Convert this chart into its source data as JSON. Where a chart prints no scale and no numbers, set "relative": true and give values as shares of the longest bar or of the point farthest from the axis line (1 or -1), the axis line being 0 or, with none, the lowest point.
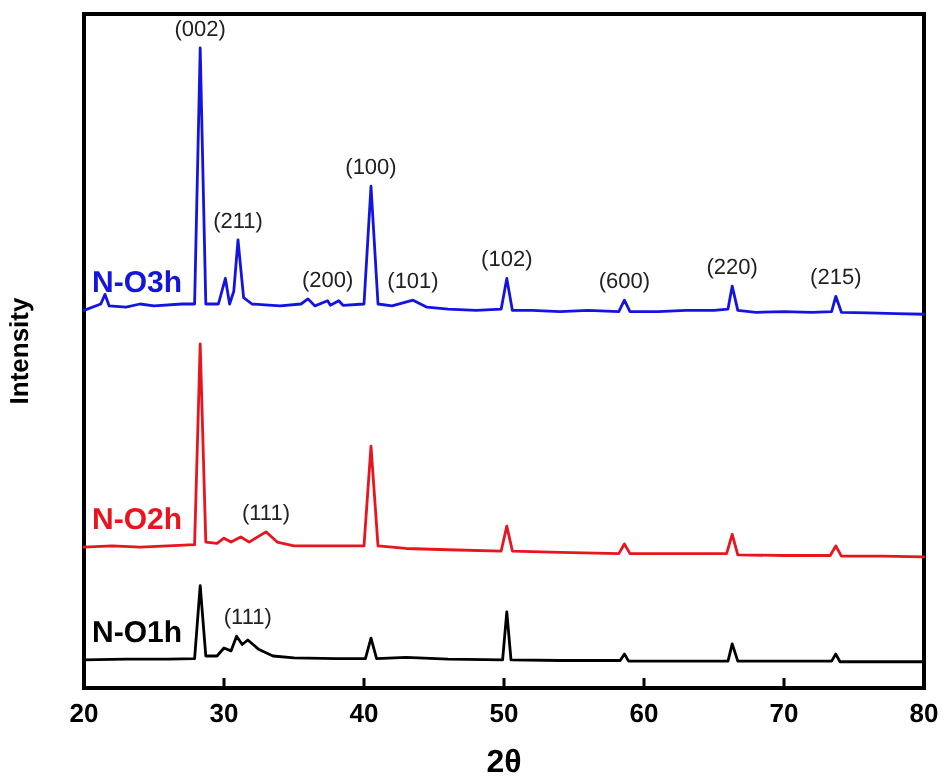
{
  "chart_data": {
    "type": "line",
    "relative": true,
    "xlabel": "2θ",
    "ylabel": "Intensity",
    "xlim": [
      20,
      80
    ],
    "xticks": [
      20,
      30,
      40,
      50,
      60,
      70,
      80
    ],
    "tick_labels": "x",
    "grid": false,
    "marker": "none",
    "line_style": "solid",
    "series": [
      {
        "name": "N-O3h",
        "color": "#1414e0",
        "x": [
          20,
          21.2,
          21.5,
          21.8,
          23,
          24,
          25,
          27,
          27.9,
          28.3,
          28.7,
          29.6,
          30.1,
          30.4,
          30.7,
          31.0,
          31.4,
          32,
          34,
          35.5,
          36,
          36.5,
          37.4,
          37.6,
          38.2,
          38.5,
          40,
          40.5,
          41,
          42,
          43.5,
          44.5,
          46,
          48,
          49.8,
          50.2,
          50.6,
          52,
          54,
          56,
          58.2,
          58.6,
          59,
          61,
          63,
          65,
          66,
          66.3,
          66.7,
          68,
          70,
          72,
          73.4,
          73.7,
          74.1,
          76,
          78,
          80
        ],
        "values": [
          0.59,
          0.6,
          0.615,
          0.597,
          0.595,
          0.6,
          0.597,
          0.6,
          0.6,
          1.0,
          0.6,
          0.6,
          0.64,
          0.6,
          0.62,
          0.7,
          0.61,
          0.6,
          0.597,
          0.6,
          0.608,
          0.597,
          0.605,
          0.598,
          0.605,
          0.598,
          0.6,
          0.784,
          0.6,
          0.597,
          0.606,
          0.595,
          0.592,
          0.59,
          0.592,
          0.64,
          0.59,
          0.59,
          0.588,
          0.59,
          0.588,
          0.606,
          0.588,
          0.588,
          0.59,
          0.59,
          0.592,
          0.628,
          0.59,
          0.587,
          0.588,
          0.587,
          0.588,
          0.612,
          0.587,
          0.586,
          0.585,
          0.584
        ]
      },
      {
        "name": "N-O2h",
        "color": "#e8141e",
        "x": [
          20,
          22,
          24,
          26,
          27.9,
          28.3,
          28.7,
          29.5,
          30,
          30.5,
          31.2,
          31.8,
          33,
          33.8,
          35,
          37,
          40,
          40.5,
          41,
          43,
          46,
          49.8,
          50.2,
          50.6,
          54,
          58.2,
          58.6,
          59,
          62,
          65.9,
          66.3,
          66.7,
          70,
          73.3,
          73.7,
          74.1,
          77,
          80
        ],
        "values": [
          0.22,
          0.222,
          0.22,
          0.222,
          0.224,
          0.5375,
          0.228,
          0.226,
          0.234,
          0.228,
          0.236,
          0.228,
          0.244,
          0.228,
          0.222,
          0.222,
          0.222,
          0.378,
          0.222,
          0.218,
          0.216,
          0.214,
          0.253,
          0.214,
          0.212,
          0.21,
          0.225,
          0.21,
          0.21,
          0.21,
          0.24,
          0.208,
          0.207,
          0.207,
          0.222,
          0.206,
          0.206,
          0.205
        ]
      },
      {
        "name": "N-O1h",
        "color": "#000000",
        "x": [
          20,
          23,
          26,
          27.9,
          28.3,
          28.7,
          29.5,
          30,
          30.5,
          30.9,
          31.3,
          31.7,
          32.5,
          33.5,
          35,
          38,
          40.1,
          40.5,
          40.9,
          43,
          46,
          49.9,
          50.2,
          50.5,
          54,
          58.3,
          58.6,
          58.9,
          62,
          66,
          66.3,
          66.7,
          70,
          73.4,
          73.7,
          74,
          77,
          80
        ],
        "values": [
          0.044,
          0.045,
          0.045,
          0.046,
          0.16,
          0.05,
          0.05,
          0.0625,
          0.058,
          0.081,
          0.068,
          0.075,
          0.06,
          0.05,
          0.047,
          0.046,
          0.046,
          0.078,
          0.046,
          0.048,
          0.045,
          0.044,
          0.119,
          0.044,
          0.043,
          0.043,
          0.053,
          0.042,
          0.042,
          0.042,
          0.069,
          0.042,
          0.042,
          0.042,
          0.053,
          0.041,
          0.041,
          0.041
        ]
      }
    ],
    "annotations": [
      {
        "text": "(002)",
        "x": 28.3,
        "y": 1.0
      },
      {
        "text": "(211)",
        "x": 31.0,
        "y": 0.7
      },
      {
        "text": "(200)",
        "x": 37.4,
        "y": 0.608
      },
      {
        "text": "(100)",
        "x": 40.5,
        "y": 0.784
      },
      {
        "text": "(101)",
        "x": 43.5,
        "y": 0.606
      },
      {
        "text": "(102)",
        "x": 50.2,
        "y": 0.64
      },
      {
        "text": "(600)",
        "x": 58.6,
        "y": 0.606
      },
      {
        "text": "(220)",
        "x": 66.3,
        "y": 0.628
      },
      {
        "text": "(215)",
        "x": 73.7,
        "y": 0.612
      },
      {
        "text": "(111)",
        "x": 33,
        "y": 0.244
      },
      {
        "text": "(111)",
        "x": 31.7,
        "y": 0.081
      }
    ]
  }
}
